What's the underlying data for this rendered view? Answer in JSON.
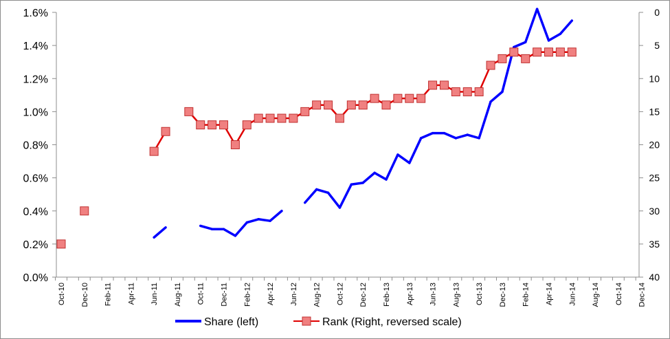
{
  "chart_data": {
    "type": "line",
    "title": "",
    "xlabel": "",
    "ylabel": "",
    "x": [
      "Oct-10",
      "Nov-10",
      "Dec-10",
      "Jan-11",
      "Feb-11",
      "Mar-11",
      "Apr-11",
      "May-11",
      "Jun-11",
      "Jul-11",
      "Aug-11",
      "Sep-11",
      "Oct-11",
      "Nov-11",
      "Dec-11",
      "Jan-12",
      "Feb-12",
      "Mar-12",
      "Apr-12",
      "May-12",
      "Jun-12",
      "Jul-12",
      "Aug-12",
      "Sep-12",
      "Oct-12",
      "Nov-12",
      "Dec-12",
      "Jan-13",
      "Feb-13",
      "Mar-13",
      "Apr-13",
      "May-13",
      "Jun-13",
      "Jul-13",
      "Aug-13",
      "Sep-13",
      "Oct-13",
      "Nov-13",
      "Dec-13",
      "Jan-14",
      "Feb-14",
      "Mar-14",
      "Apr-14",
      "May-14",
      "Jun-14",
      "Jul-14",
      "Aug-14",
      "Sep-14",
      "Oct-14",
      "Nov-14",
      "Dec-14"
    ],
    "x_tick_labels": [
      "Oct-10",
      "Dec-10",
      "Feb-11",
      "Apr-11",
      "Jun-11",
      "Aug-11",
      "Oct-11",
      "Dec-11",
      "Feb-12",
      "Apr-12",
      "Jun-12",
      "Aug-12",
      "Oct-12",
      "Dec-12",
      "Feb-13",
      "Apr-13",
      "Jun-13",
      "Aug-13",
      "Oct-13",
      "Dec-13",
      "Feb-14",
      "Apr-14",
      "Jun-14",
      "Aug-14",
      "Oct-14",
      "Dec-14"
    ],
    "y_left": {
      "ticks": [
        "0.0%",
        "0.2%",
        "0.4%",
        "0.6%",
        "0.8%",
        "1.0%",
        "1.2%",
        "1.4%",
        "1.6%"
      ],
      "ylim": [
        0,
        1.6
      ],
      "unit": "%"
    },
    "y_right": {
      "ticks": [
        "0",
        "5",
        "10",
        "15",
        "20",
        "25",
        "30",
        "35",
        "40"
      ],
      "ylim": [
        40,
        0
      ],
      "reversed": true
    },
    "grid": false,
    "legend_position": "bottom",
    "series": [
      {
        "name": "Share (left)",
        "axis": "left",
        "color": "#0000ff",
        "values": [
          null,
          null,
          null,
          null,
          null,
          null,
          null,
          null,
          0.24,
          0.3,
          null,
          null,
          0.31,
          0.29,
          0.29,
          0.25,
          0.33,
          0.35,
          0.34,
          0.4,
          null,
          0.45,
          0.53,
          0.51,
          0.42,
          0.56,
          0.57,
          0.63,
          0.59,
          0.74,
          0.69,
          0.84,
          0.87,
          0.87,
          0.84,
          0.86,
          0.84,
          1.06,
          1.12,
          1.39,
          1.42,
          1.62,
          1.43,
          1.47,
          1.55,
          null,
          null,
          null,
          null,
          null,
          null
        ]
      },
      {
        "name": "Rank (Right, reversed scale)",
        "axis": "right",
        "color": "#e00000",
        "marker_color": "#f08080",
        "values": [
          35,
          null,
          30,
          null,
          null,
          null,
          null,
          null,
          21,
          18,
          null,
          15,
          17,
          17,
          17,
          20,
          17,
          16,
          16,
          16,
          16,
          15,
          14,
          14,
          16,
          14,
          14,
          13,
          14,
          13,
          13,
          13,
          11,
          11,
          12,
          12,
          12,
          8,
          7,
          6,
          7,
          6,
          6,
          6,
          6,
          null,
          null,
          null,
          null,
          null,
          null
        ]
      }
    ]
  }
}
